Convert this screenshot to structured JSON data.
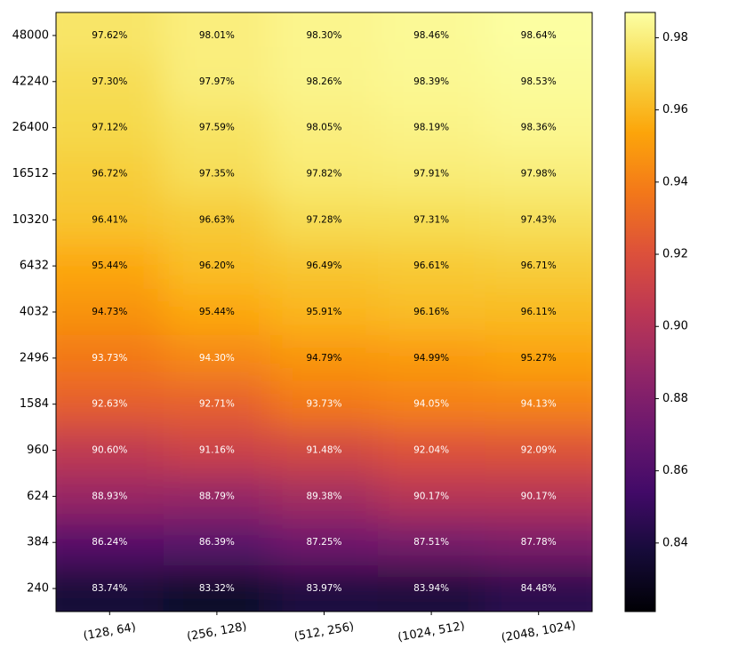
{
  "chart_data": {
    "type": "heatmap",
    "title": "",
    "xlabel": "",
    "ylabel": "",
    "x_categories": [
      "(128, 64)",
      "(256, 128)",
      "(512, 256)",
      "(1024, 512)",
      "(2048, 1024)"
    ],
    "y_categories": [
      "48000",
      "42240",
      "26400",
      "16512",
      "10320",
      "6432",
      "4032",
      "2496",
      "1584",
      "960",
      "624",
      "384",
      "240"
    ],
    "values": [
      [
        0.9762,
        0.9801,
        0.983,
        0.9846,
        0.9864
      ],
      [
        0.973,
        0.9797,
        0.9826,
        0.9839,
        0.9853
      ],
      [
        0.9712,
        0.9759,
        0.9805,
        0.9819,
        0.9836
      ],
      [
        0.9672,
        0.9735,
        0.9782,
        0.9791,
        0.9798
      ],
      [
        0.9641,
        0.9663,
        0.9728,
        0.9731,
        0.9743
      ],
      [
        0.9544,
        0.962,
        0.9649,
        0.9661,
        0.9671
      ],
      [
        0.9473,
        0.9544,
        0.9591,
        0.9616,
        0.9611
      ],
      [
        0.9373,
        0.943,
        0.9479,
        0.9499,
        0.9527
      ],
      [
        0.9263,
        0.9271,
        0.9373,
        0.9405,
        0.9413
      ],
      [
        0.906,
        0.9116,
        0.9148,
        0.9204,
        0.9209
      ],
      [
        0.8893,
        0.8879,
        0.8938,
        0.9017,
        0.9017
      ],
      [
        0.8624,
        0.8639,
        0.8725,
        0.8751,
        0.8778
      ],
      [
        0.8374,
        0.8332,
        0.8397,
        0.8394,
        0.8448
      ]
    ],
    "cell_labels": [
      [
        "97.62%",
        "98.01%",
        "98.30%",
        "98.46%",
        "98.64%"
      ],
      [
        "97.30%",
        "97.97%",
        "98.26%",
        "98.39%",
        "98.53%"
      ],
      [
        "97.12%",
        "97.59%",
        "98.05%",
        "98.19%",
        "98.36%"
      ],
      [
        "96.72%",
        "97.35%",
        "97.82%",
        "97.91%",
        "97.98%"
      ],
      [
        "96.41%",
        "96.63%",
        "97.28%",
        "97.31%",
        "97.43%"
      ],
      [
        "95.44%",
        "96.20%",
        "96.49%",
        "96.61%",
        "96.71%"
      ],
      [
        "94.73%",
        "95.44%",
        "95.91%",
        "96.16%",
        "96.11%"
      ],
      [
        "93.73%",
        "94.30%",
        "94.79%",
        "94.99%",
        "95.27%"
      ],
      [
        "92.63%",
        "92.71%",
        "93.73%",
        "94.05%",
        "94.13%"
      ],
      [
        "90.60%",
        "91.16%",
        "91.48%",
        "92.04%",
        "92.09%"
      ],
      [
        "88.93%",
        "88.79%",
        "89.38%",
        "90.17%",
        "90.17%"
      ],
      [
        "86.24%",
        "86.39%",
        "87.25%",
        "87.51%",
        "87.78%"
      ],
      [
        "83.74%",
        "83.32%",
        "83.97%",
        "83.94%",
        "84.48%"
      ]
    ],
    "colormap": "inferno",
    "shading": "smooth",
    "colorbar": {
      "range": [
        0.821,
        0.987
      ],
      "ticks": [
        0.84,
        0.86,
        0.88,
        0.9,
        0.92,
        0.94,
        0.96,
        0.98
      ],
      "tick_labels": [
        "0.84",
        "0.86",
        "0.88",
        "0.90",
        "0.92",
        "0.94",
        "0.96",
        "0.98"
      ],
      "placement": "right"
    },
    "label_colors": {
      "dark_text": "#000000",
      "light_text": "#ffffff",
      "threshold": 0.945
    },
    "grid": false
  }
}
